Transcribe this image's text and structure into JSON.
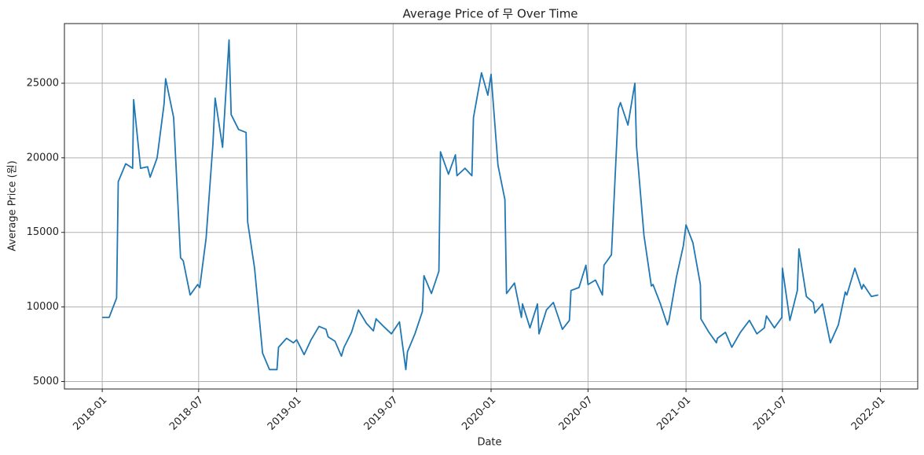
{
  "chart_data": {
    "type": "line",
    "title": "Average Price of 무 Over Time",
    "xlabel": "Date",
    "ylabel": "Average Price (원)",
    "x": [
      "2018-01-01",
      "2018-01-14",
      "2018-01-28",
      "2018-01-31",
      "2018-02-14",
      "2018-02-27",
      "2018-03-01",
      "2018-03-14",
      "2018-03-27",
      "2018-04-01",
      "2018-04-14",
      "2018-04-27",
      "2018-04-30",
      "2018-05-15",
      "2018-05-28",
      "2018-06-02",
      "2018-06-15",
      "2018-06-29",
      "2018-07-03",
      "2018-07-15",
      "2018-07-28",
      "2018-08-01",
      "2018-08-15",
      "2018-08-21",
      "2018-08-27",
      "2018-08-31",
      "2018-09-14",
      "2018-09-28",
      "2018-10-01",
      "2018-10-14",
      "2018-10-29",
      "2018-11-11",
      "2018-11-25",
      "2018-11-28",
      "2018-12-13",
      "2018-12-26",
      "2019-01-01",
      "2019-01-15",
      "2019-01-28",
      "2019-02-12",
      "2019-02-25",
      "2019-03-01",
      "2019-03-14",
      "2019-03-26",
      "2019-03-31",
      "2019-04-14",
      "2019-04-27",
      "2019-05-12",
      "2019-05-25",
      "2019-05-30",
      "2019-06-13",
      "2019-06-28",
      "2019-07-13",
      "2019-07-25",
      "2019-07-28",
      "2019-08-11",
      "2019-08-25",
      "2019-08-28",
      "2019-09-11",
      "2019-09-25",
      "2019-09-28",
      "2019-10-13",
      "2019-10-26",
      "2019-10-29",
      "2019-11-13",
      "2019-11-26",
      "2019-11-29",
      "2019-12-14",
      "2019-12-26",
      "2020-01-01",
      "2020-01-14",
      "2020-01-27",
      "2020-01-30",
      "2020-02-14",
      "2020-02-27",
      "2020-02-29",
      "2020-03-14",
      "2020-03-28",
      "2020-03-31",
      "2020-04-14",
      "2020-04-27",
      "2020-05-14",
      "2020-05-27",
      "2020-05-30",
      "2020-06-14",
      "2020-06-27",
      "2020-07-01",
      "2020-07-15",
      "2020-07-28",
      "2020-07-31",
      "2020-08-14",
      "2020-08-27",
      "2020-08-31",
      "2020-09-14",
      "2020-09-27",
      "2020-09-30",
      "2020-10-14",
      "2020-10-28",
      "2020-10-31",
      "2020-11-14",
      "2020-11-27",
      "2020-11-30",
      "2020-12-14",
      "2020-12-27",
      "2021-01-01",
      "2021-01-14",
      "2021-01-28",
      "2021-01-29",
      "2021-02-13",
      "2021-02-27",
      "2021-03-01",
      "2021-03-16",
      "2021-03-28",
      "2021-04-13",
      "2021-04-30",
      "2021-05-14",
      "2021-05-28",
      "2021-06-01",
      "2021-06-16",
      "2021-06-30",
      "2021-07-01",
      "2021-07-15",
      "2021-07-29",
      "2021-08-01",
      "2021-08-15",
      "2021-08-28",
      "2021-08-31",
      "2021-09-14",
      "2021-09-29",
      "2021-10-14",
      "2021-10-27",
      "2021-10-30",
      "2021-11-14",
      "2021-11-27",
      "2021-11-30",
      "2021-12-15",
      "2021-12-28"
    ],
    "series": [
      {
        "name": "Average Price",
        "color": "#1f77b4",
        "values": [
          9300,
          9300,
          10600,
          18400,
          19600,
          19300,
          23900,
          19300,
          19400,
          18700,
          20000,
          23600,
          25300,
          22700,
          13300,
          13100,
          10800,
          11500,
          11300,
          14600,
          21000,
          24000,
          20700,
          24300,
          27900,
          22900,
          21900,
          21700,
          15700,
          12600,
          6900,
          5800,
          5800,
          7300,
          7900,
          7600,
          7800,
          6800,
          7800,
          8700,
          8500,
          8000,
          7700,
          6700,
          7300,
          8300,
          9800,
          8900,
          8400,
          9200,
          8700,
          8200,
          9000,
          5800,
          7000,
          8200,
          9700,
          12100,
          10900,
          12400,
          20400,
          18900,
          20200,
          18800,
          19300,
          18800,
          22700,
          25700,
          24200,
          25600,
          19500,
          17200,
          10900,
          11600,
          9300,
          10200,
          8600,
          10200,
          8200,
          9800,
          10300,
          8500,
          9100,
          11100,
          11300,
          12800,
          11500,
          11800,
          10800,
          12800,
          13500,
          23300,
          23700,
          22200,
          25000,
          20800,
          14800,
          11400,
          11500,
          10200,
          8800,
          9100,
          12000,
          14100,
          15500,
          14300,
          11500,
          9200,
          8300,
          7600,
          7900,
          8300,
          7300,
          8300,
          9100,
          8200,
          8600,
          9400,
          8600,
          9300,
          12600,
          9100,
          11100,
          13900,
          10700,
          10300,
          9600,
          10200,
          7600,
          8800,
          11000,
          10800,
          12600,
          11200,
          11500,
          10700,
          10800
        ]
      }
    ],
    "xlim": [
      "2017-10-22",
      "2022-03-12"
    ],
    "xticks": [
      "2018-01",
      "2018-07",
      "2019-01",
      "2019-07",
      "2020-01",
      "2020-07",
      "2021-01",
      "2021-07",
      "2022-01"
    ],
    "ylim": [
      4500,
      29000
    ],
    "yticks": [
      5000,
      10000,
      15000,
      20000,
      25000
    ],
    "grid": true
  }
}
